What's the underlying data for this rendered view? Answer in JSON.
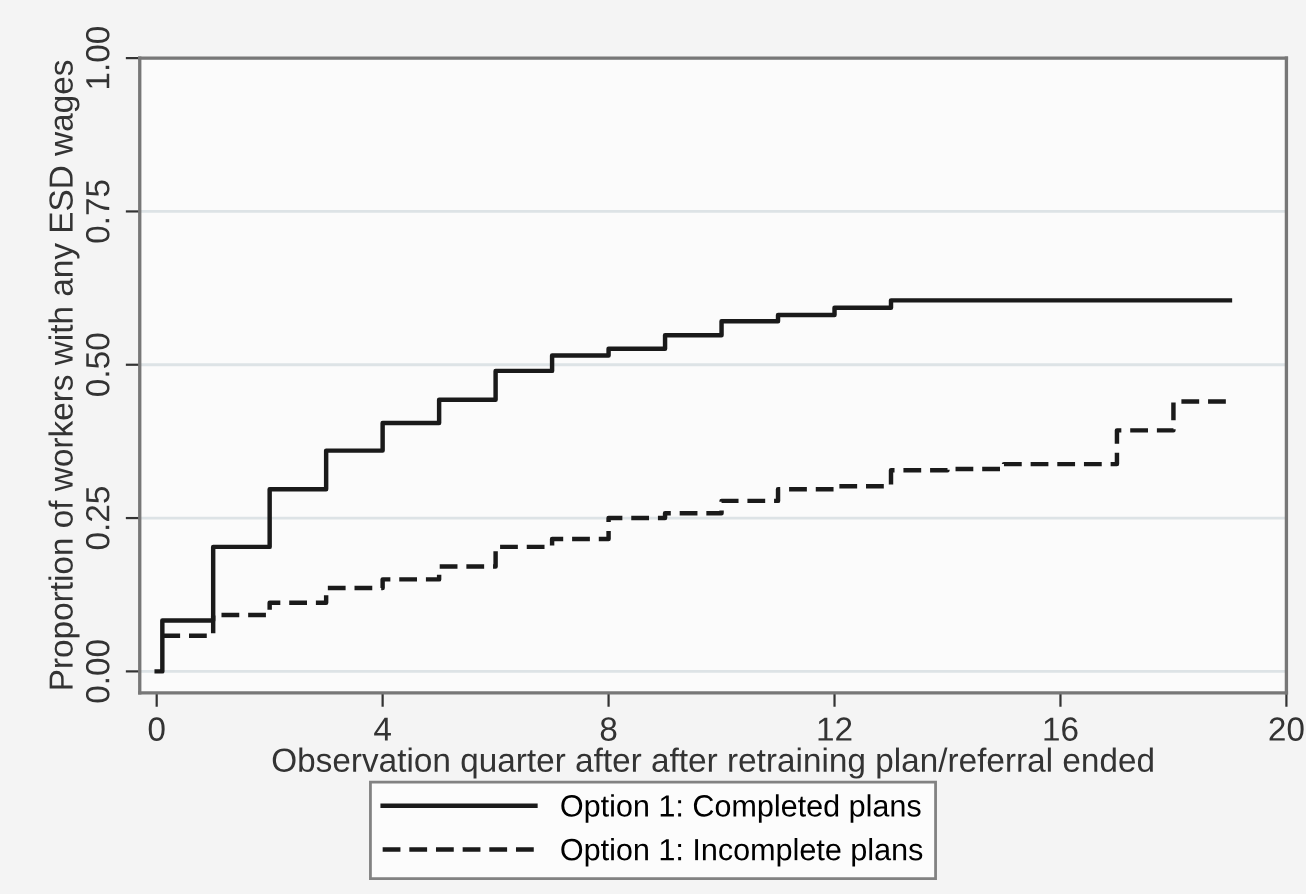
{
  "chart_data": {
    "type": "step",
    "xlabel": "Observation quarter after after retraining plan/referral ended",
    "ylabel": "Proportion of workers with any ESD wages",
    "xlim": [
      -0.3,
      20
    ],
    "xticks": [
      0,
      4,
      8,
      12,
      16,
      20
    ],
    "ylim": [
      -0.035,
      1.0
    ],
    "yticks": [
      {
        "value": 0,
        "label": "0.00"
      },
      {
        "value": 0.25,
        "label": "0.25"
      },
      {
        "value": 0.5,
        "label": "0.50"
      },
      {
        "value": 0.75,
        "label": "0.75"
      },
      {
        "value": 1,
        "label": "1.00"
      }
    ],
    "grid": "y",
    "legend": "bottom",
    "series": [
      {
        "name": "Option 1: Completed plans",
        "color": "#1a1a1a",
        "line_style": "solid",
        "x": [
          0,
          0.1,
          1,
          2,
          3,
          4,
          5,
          6,
          7,
          8,
          9,
          10,
          11,
          12,
          13,
          19
        ],
        "values": [
          0,
          0.083,
          0.203,
          0.297,
          0.36,
          0.405,
          0.443,
          0.49,
          0.515,
          0.526,
          0.548,
          0.571,
          0.581,
          0.593,
          0.605,
          0.605
        ]
      },
      {
        "name": "Option 1: Incomplete plans",
        "color": "#1a1a1a",
        "line_style": "dashed",
        "x": [
          0.1,
          1,
          2,
          3,
          4,
          5,
          6,
          7,
          8,
          9,
          10,
          11,
          12,
          13,
          14,
          15,
          17,
          18,
          19
        ],
        "values": [
          0.058,
          0.092,
          0.112,
          0.136,
          0.15,
          0.171,
          0.203,
          0.216,
          0.25,
          0.258,
          0.278,
          0.297,
          0.302,
          0.328,
          0.33,
          0.338,
          0.393,
          0.44,
          0.44
        ]
      }
    ]
  }
}
